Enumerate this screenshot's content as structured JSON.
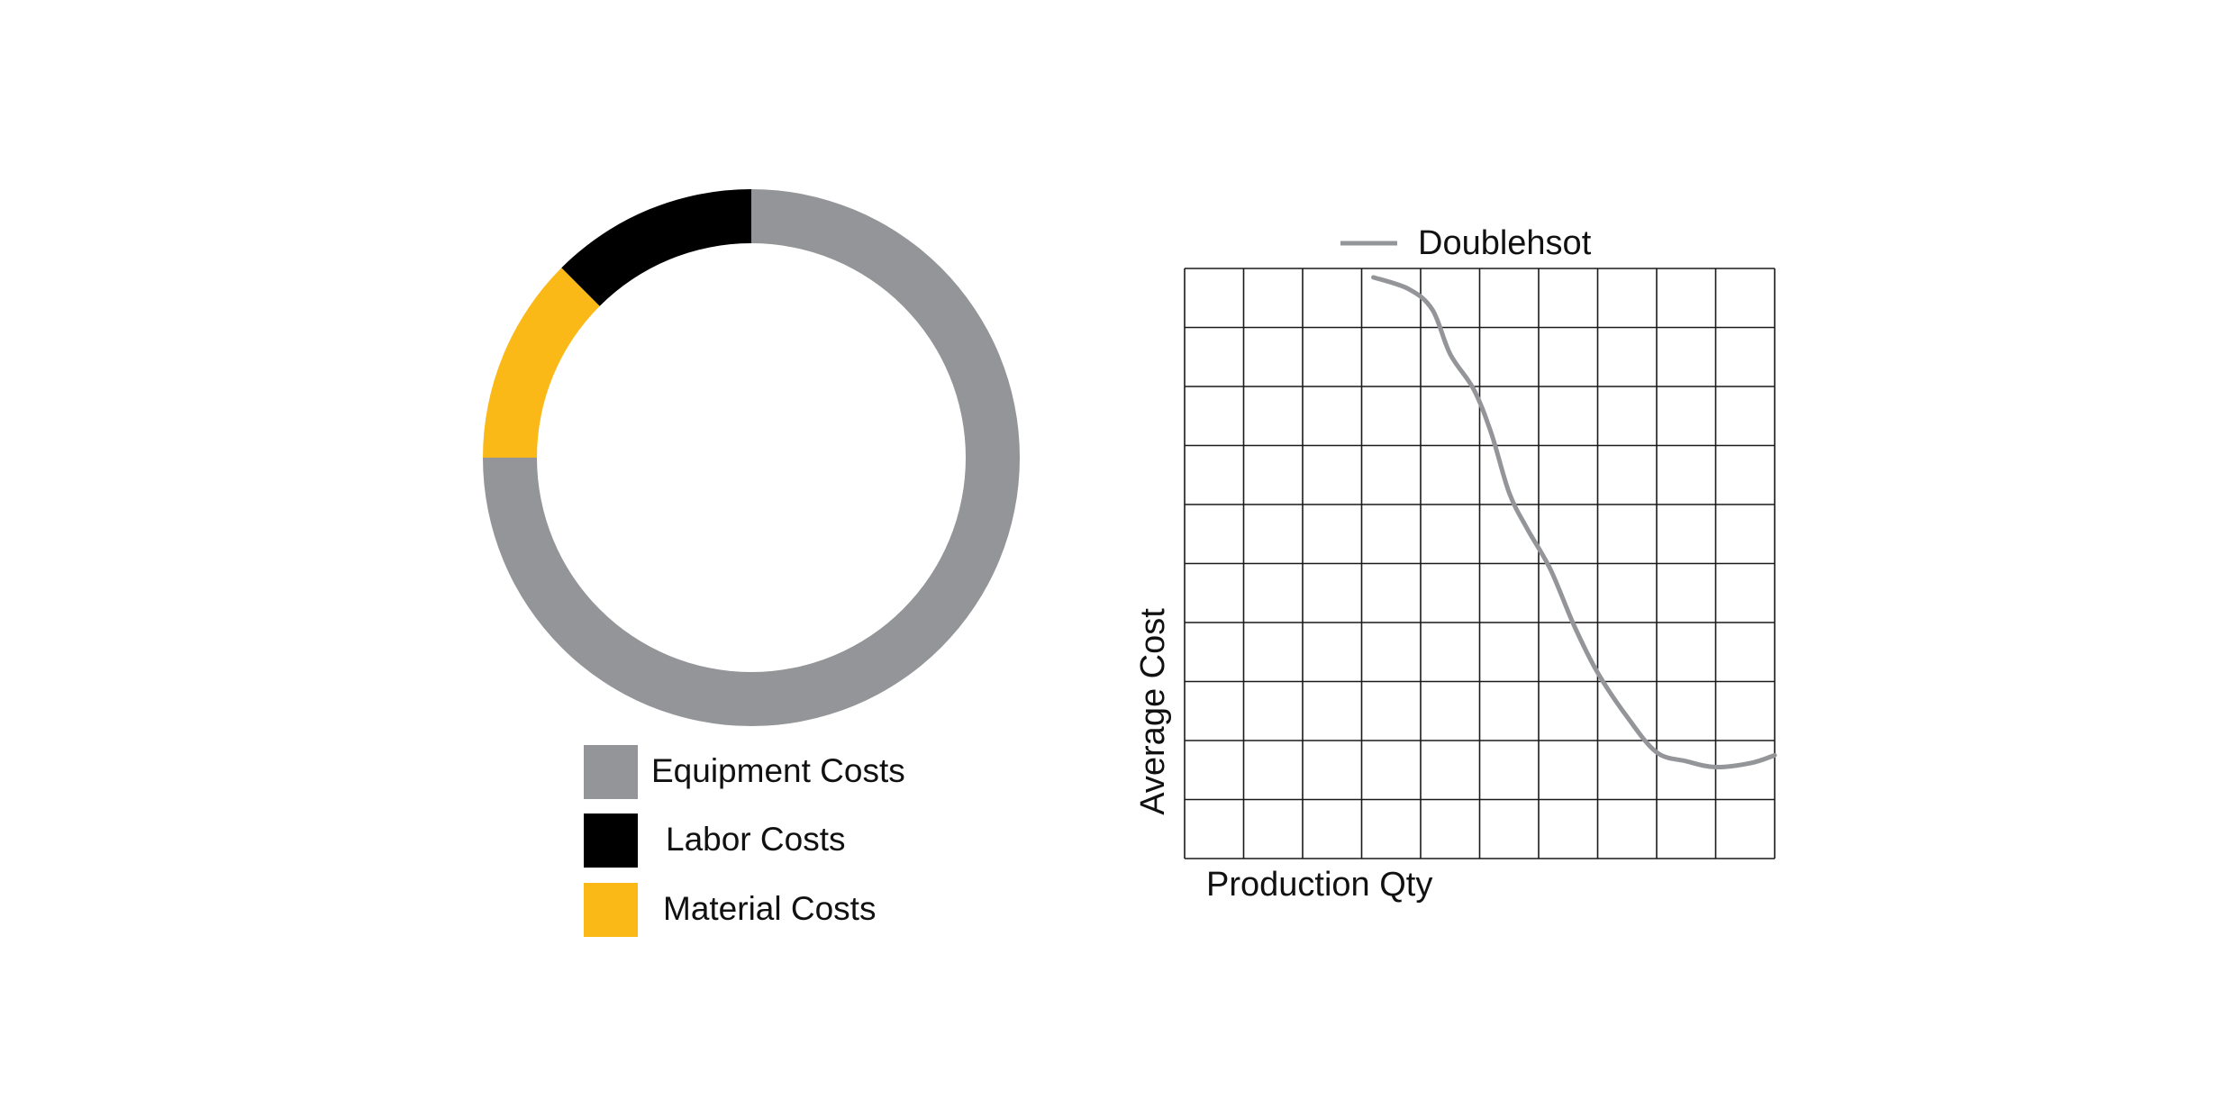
{
  "chart_data": [
    {
      "type": "pie",
      "style": "donut",
      "categories": [
        "Equipment Costs",
        "Labor Costs",
        "Material Costs"
      ],
      "values": [
        75,
        12.5,
        12.5
      ],
      "colors": [
        "#939598",
        "#000000",
        "#fbb918"
      ],
      "legend": "bottom"
    },
    {
      "type": "line",
      "xlabel": "Production Qty",
      "ylabel": "Average Cost",
      "grid": true,
      "legend": "top",
      "xlim": [
        0,
        10
      ],
      "ylim": [
        0,
        10
      ],
      "series": [
        {
          "name": "Doublehsot",
          "color": "#939598",
          "x": [
            3.2,
            3.8,
            4.2,
            4.5,
            4.9,
            5.2,
            5.5,
            5.8,
            6.2,
            6.6,
            7.0,
            7.5,
            8.0,
            8.5,
            9.0,
            9.6,
            10.0
          ],
          "y": [
            9.85,
            9.65,
            9.3,
            8.55,
            7.95,
            7.2,
            6.2,
            5.6,
            4.9,
            3.95,
            3.15,
            2.4,
            1.8,
            1.65,
            1.55,
            1.62,
            1.75
          ]
        }
      ]
    }
  ]
}
